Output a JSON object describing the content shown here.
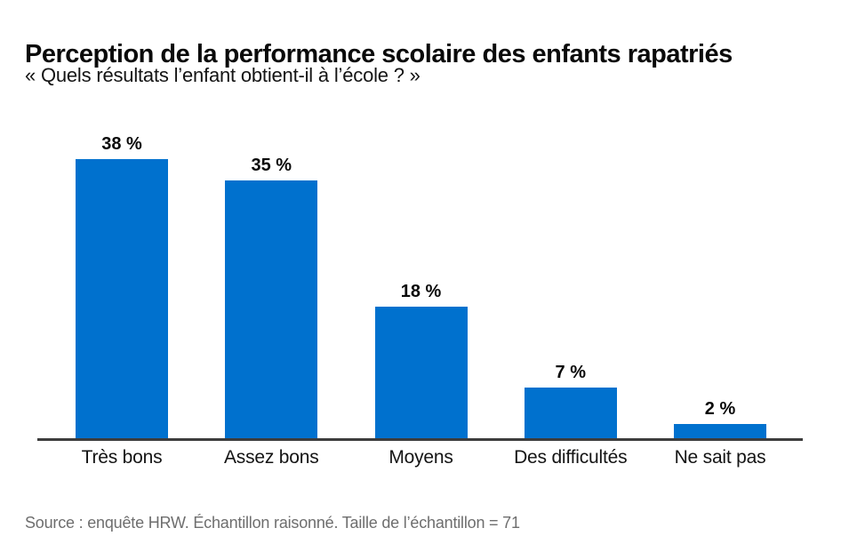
{
  "header": {
    "title": "Perception de la performance scolaire des enfants rapatriés",
    "subtitle": "« Quels résultats l’enfant obtient-il à l’école ? »"
  },
  "chart_data": {
    "type": "bar",
    "title": "Perception de la performance scolaire des enfants rapatriés",
    "subtitle": "« Quels résultats l’enfant obtient-il à l’école ? »",
    "categories": [
      "Très bons",
      "Assez bons",
      "Moyens",
      "Des difficultés",
      "Ne sait pas"
    ],
    "values": [
      38,
      35,
      18,
      7,
      2
    ],
    "value_labels": [
      "38 %",
      "35 %",
      "18 %",
      "7 %",
      "2 %"
    ],
    "xlabel": "",
    "ylabel": "",
    "ylim": [
      0,
      40
    ],
    "grid": false,
    "legend": "none",
    "bar_color": "#0071ce",
    "axis_color": "#3d3d3d",
    "value_label_color": "#0a0a0a"
  },
  "footer": {
    "source": "Source : enquête HRW. Échantillon raisonné. Taille de l’échantillon = 71"
  }
}
